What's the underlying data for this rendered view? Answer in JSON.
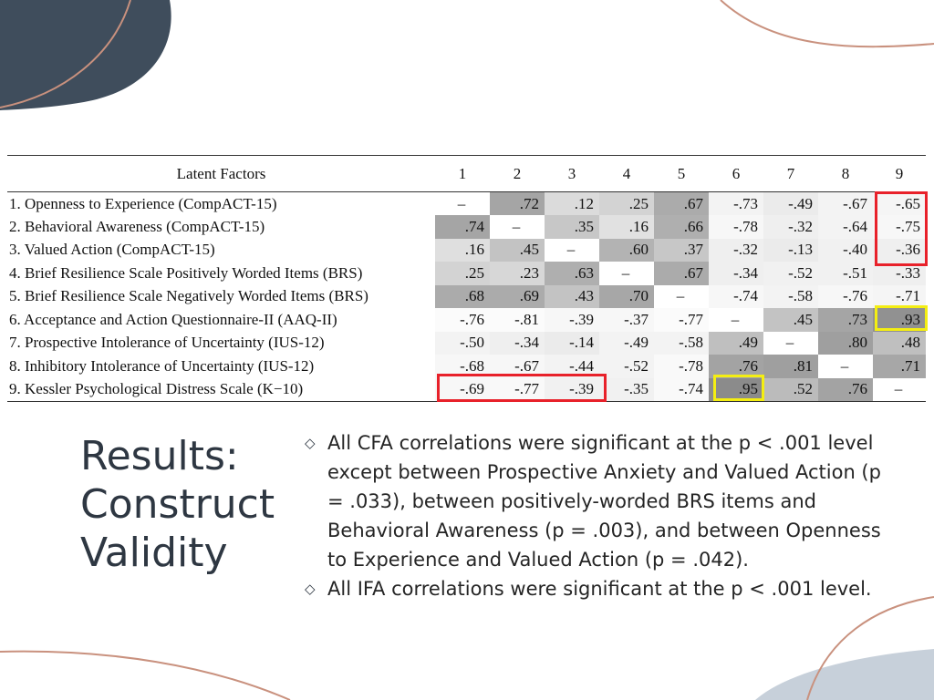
{
  "slide": {
    "title_lines": [
      "Results:",
      "Construct",
      "Validity"
    ]
  },
  "table": {
    "header_label": "Latent Factors",
    "col_headers": [
      "1",
      "2",
      "3",
      "4",
      "5",
      "6",
      "7",
      "8",
      "9"
    ],
    "rows": [
      {
        "label": "1. Openness to Experience (CompACT-15)",
        "values": [
          "–",
          ".72",
          ".12",
          ".25",
          ".67",
          "-.73",
          "-.49",
          "-.67",
          "-.65"
        ],
        "shade": [
          0,
          0.45,
          0.18,
          0.22,
          0.42,
          0.06,
          0.1,
          0.06,
          0.05
        ]
      },
      {
        "label": "2. Behavioral Awareness (CompACT-15)",
        "values": [
          ".74",
          "–",
          ".35",
          ".16",
          ".66",
          "-.78",
          "-.32",
          "-.64",
          "-.75"
        ],
        "shade": [
          0.45,
          0,
          0.28,
          0.15,
          0.4,
          0.04,
          0.08,
          0.06,
          0.04
        ]
      },
      {
        "label": "3. Valued Action (CompACT-15)",
        "values": [
          ".16",
          ".45",
          "–",
          ".60",
          ".37",
          "-.32",
          "-.13",
          "-.40",
          "-.36"
        ],
        "shade": [
          0.16,
          0.3,
          0,
          0.38,
          0.28,
          0.08,
          0.1,
          0.07,
          0.08
        ]
      },
      {
        "label": "4. Brief Resilience Scale Positively Worded Items (BRS)",
        "values": [
          ".25",
          ".23",
          ".63",
          "–",
          ".67",
          "-.34",
          "-.52",
          "-.51",
          "-.33"
        ],
        "shade": [
          0.22,
          0.2,
          0.4,
          0,
          0.42,
          0.08,
          0.07,
          0.07,
          0.08
        ]
      },
      {
        "label": "5. Brief Resilience Scale Negatively Worded Items (BRS)",
        "values": [
          ".68",
          ".69",
          ".43",
          ".70",
          "–",
          "-.74",
          "-.58",
          "-.76",
          "-.71"
        ],
        "shade": [
          0.42,
          0.42,
          0.3,
          0.44,
          0,
          0.04,
          0.06,
          0.04,
          0.05
        ]
      },
      {
        "label": "6. Acceptance and Action Questionnaire-II (AAQ-II)",
        "values": [
          "-.76",
          "-.81",
          "-.39",
          "-.37",
          "-.77",
          "–",
          ".45",
          ".73",
          ".93"
        ],
        "shade": [
          0.02,
          0.02,
          0.04,
          0.04,
          0.02,
          0,
          0.3,
          0.45,
          0.55
        ]
      },
      {
        "label": "7. Prospective Intolerance of Uncertainty (IUS-12)",
        "values": [
          "-.50",
          "-.34",
          "-.14",
          "-.49",
          "-.58",
          ".49",
          "–",
          ".80",
          ".48"
        ],
        "shade": [
          0.06,
          0.08,
          0.1,
          0.06,
          0.06,
          0.32,
          0,
          0.48,
          0.32
        ]
      },
      {
        "label": "8. Inhibitory Intolerance of Uncertainty (IUS-12)",
        "values": [
          "-.68",
          "-.67",
          "-.44",
          "-.52",
          "-.78",
          ".76",
          ".81",
          "–",
          ".71"
        ],
        "shade": [
          0.04,
          0.04,
          0.06,
          0.06,
          0.03,
          0.46,
          0.48,
          0,
          0.44
        ]
      },
      {
        "label": "9. Kessler Psychological Distress Scale (K−10)",
        "values": [
          "-.69",
          "-.77",
          "-.39",
          "-.35",
          "-.74",
          ".95",
          ".52",
          ".76",
          "–"
        ],
        "shade": [
          0.04,
          0.03,
          0.07,
          0.07,
          0.03,
          0.58,
          0.34,
          0.46,
          0
        ]
      }
    ],
    "highlight_colors": {
      "red": "#e8212a",
      "yellow": "#f4ee12"
    }
  },
  "bullets": [
    "All CFA correlations were significant at the p < .001 level except between Prospective Anxiety and Valued Action (p = .033), between positively-worded BRS items and Behavioral Awareness (p = .003), and between Openness to Experience and Valued Action (p = .042).",
    "All IFA correlations were significant at the p < .001 level."
  ],
  "bullet_icon": "diamond-outline-icon",
  "colors": {
    "title": "#2e3742",
    "deco_dark": "#3f4d5c",
    "deco_copper": "#c9917e",
    "deco_blue": "#c7d0da"
  }
}
